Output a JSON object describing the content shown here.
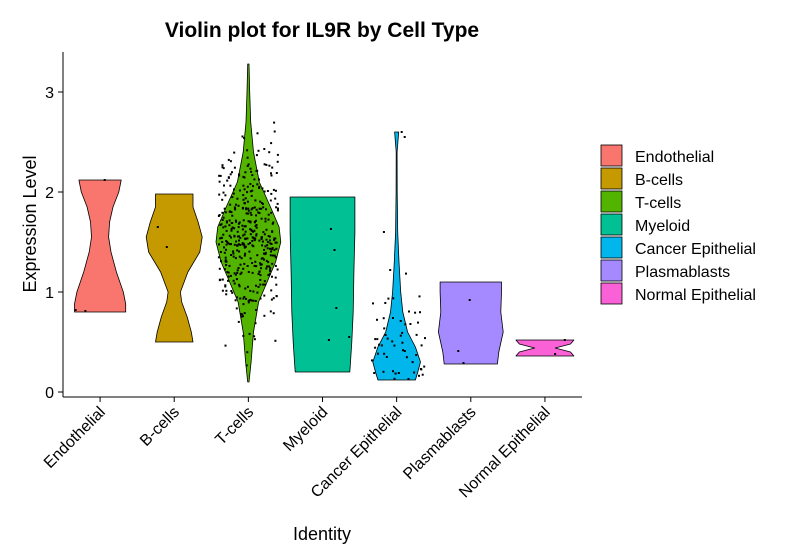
{
  "chart_data": {
    "type": "violin",
    "title": "Violin plot for IL9R by Cell Type",
    "xlabel": "Identity",
    "ylabel": "Expression Level",
    "ylim": [
      -0.05,
      3.4
    ],
    "yticks": [
      0,
      1,
      2,
      3
    ],
    "grid": false,
    "legend_position": "right",
    "categories": [
      "Endothelial",
      "B-cells",
      "T-cells",
      "Myeloid",
      "Cancer Epithelial",
      "Plasmablasts",
      "Normal Epithelial"
    ],
    "series": [
      {
        "name": "Endothelial",
        "color": "#F8766D",
        "min": 0.8,
        "max": 2.12,
        "profile": [
          [
            0.8,
            0.75
          ],
          [
            0.88,
            0.75
          ],
          [
            1.0,
            0.68
          ],
          [
            1.2,
            0.48
          ],
          [
            1.4,
            0.32
          ],
          [
            1.55,
            0.25
          ],
          [
            1.7,
            0.28
          ],
          [
            1.85,
            0.38
          ],
          [
            2.0,
            0.55
          ],
          [
            2.12,
            0.62
          ]
        ],
        "points": [
          [
            0.81,
            0.8
          ],
          [
            0.82,
            0.82
          ],
          [
            2.12,
            2.13
          ]
        ]
      },
      {
        "name": "B-cells",
        "color": "#C49A00",
        "min": 0.5,
        "max": 1.98,
        "profile": [
          [
            0.5,
            0.55
          ],
          [
            0.6,
            0.5
          ],
          [
            0.75,
            0.38
          ],
          [
            0.9,
            0.22
          ],
          [
            1.0,
            0.18
          ],
          [
            1.2,
            0.4
          ],
          [
            1.4,
            0.75
          ],
          [
            1.55,
            0.82
          ],
          [
            1.7,
            0.7
          ],
          [
            1.85,
            0.55
          ],
          [
            1.98,
            0.55
          ]
        ],
        "points": [
          [
            1.65,
            1.66
          ],
          [
            1.45,
            1.46
          ]
        ]
      },
      {
        "name": "T-cells",
        "color": "#53B400",
        "min": 0.1,
        "max": 3.28,
        "profile": [
          [
            0.1,
            0.02
          ],
          [
            0.3,
            0.08
          ],
          [
            0.6,
            0.15
          ],
          [
            0.9,
            0.3
          ],
          [
            1.1,
            0.55
          ],
          [
            1.3,
            0.8
          ],
          [
            1.5,
            0.95
          ],
          [
            1.65,
            0.9
          ],
          [
            1.85,
            0.65
          ],
          [
            2.1,
            0.32
          ],
          [
            2.4,
            0.15
          ],
          [
            2.7,
            0.07
          ],
          [
            3.0,
            0.04
          ],
          [
            3.28,
            0.02
          ]
        ],
        "jitter": {
          "count": 420,
          "mu": 1.55,
          "sigma": 0.45,
          "min": 0.1,
          "max": 3.28
        },
        "points": []
      },
      {
        "name": "Myeloid",
        "color": "#00C094",
        "min": 0.2,
        "max": 1.95,
        "profile": [
          [
            0.2,
            0.8
          ],
          [
            0.3,
            0.82
          ],
          [
            0.5,
            0.86
          ],
          [
            0.8,
            0.9
          ],
          [
            1.2,
            0.92
          ],
          [
            1.6,
            0.95
          ],
          [
            1.95,
            0.95
          ]
        ],
        "points": [
          [
            1.63,
            1.64
          ],
          [
            1.42,
            1.43
          ],
          [
            0.84,
            0.85
          ],
          [
            0.55,
            0.56
          ],
          [
            0.52,
            0.53
          ]
        ]
      },
      {
        "name": "Cancer Epithelial",
        "color": "#00B6EB",
        "min": 0.12,
        "max": 2.6,
        "profile": [
          [
            0.12,
            0.55
          ],
          [
            0.2,
            0.62
          ],
          [
            0.3,
            0.7
          ],
          [
            0.45,
            0.55
          ],
          [
            0.6,
            0.32
          ],
          [
            0.8,
            0.18
          ],
          [
            1.0,
            0.12
          ],
          [
            1.3,
            0.07
          ],
          [
            1.6,
            0.03
          ],
          [
            2.0,
            0.015
          ],
          [
            2.4,
            0.012
          ],
          [
            2.6,
            0.06
          ]
        ],
        "jitter": {
          "count": 55,
          "mu": 0.45,
          "sigma": 0.35,
          "min": 0.12,
          "max": 2.6
        },
        "points": [
          [
            2.6,
            2.61
          ],
          [
            2.55,
            2.56
          ],
          [
            1.22,
            1.23
          ],
          [
            1.6,
            1.61
          ]
        ]
      },
      {
        "name": "Plasmablasts",
        "color": "#A58AFF",
        "min": 0.28,
        "max": 1.1,
        "profile": [
          [
            0.28,
            0.78
          ],
          [
            0.4,
            0.82
          ],
          [
            0.6,
            0.95
          ],
          [
            0.8,
            0.88
          ],
          [
            1.0,
            0.9
          ],
          [
            1.1,
            0.9
          ]
        ],
        "points": [
          [
            0.92,
            0.93
          ],
          [
            0.29,
            0.3
          ],
          [
            0.41,
            0.42
          ]
        ]
      },
      {
        "name": "Normal Epithelial",
        "color": "#FB61D7",
        "min": 0.36,
        "max": 0.52,
        "profile": [
          [
            0.36,
            0.85
          ],
          [
            0.4,
            0.75
          ],
          [
            0.44,
            0.3
          ],
          [
            0.48,
            0.75
          ],
          [
            0.52,
            0.85
          ]
        ],
        "points": [
          [
            0.52,
            0.53
          ],
          [
            0.38,
            0.39
          ]
        ]
      }
    ]
  }
}
